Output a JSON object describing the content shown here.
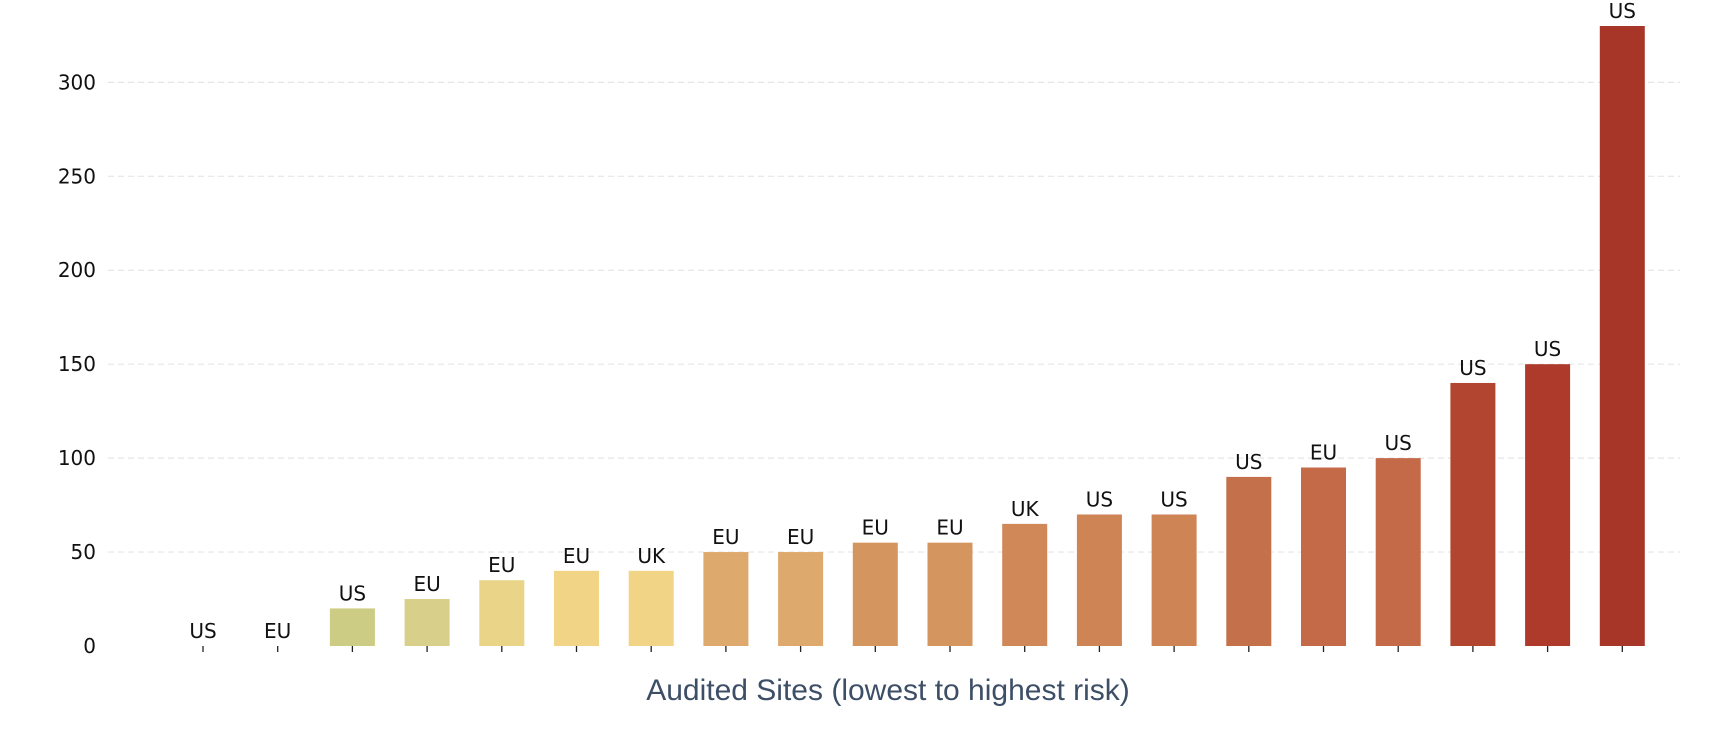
{
  "chart_data": {
    "type": "bar",
    "title": "",
    "xlabel": "Audited Sites (lowest to highest risk)",
    "ylabel": "",
    "ylim": [
      0,
      330
    ],
    "yticks": [
      0,
      50,
      100,
      150,
      200,
      250,
      300
    ],
    "grid": true,
    "legend": "none",
    "bar_labels": [
      "US",
      "EU",
      "US",
      "EU",
      "EU",
      "EU",
      "UK",
      "EU",
      "EU",
      "EU",
      "EU",
      "UK",
      "US",
      "US",
      "US",
      "EU",
      "US",
      "US",
      "US",
      "US"
    ],
    "values": [
      0,
      0,
      20,
      25,
      35,
      40,
      40,
      50,
      50,
      55,
      55,
      65,
      70,
      70,
      90,
      95,
      100,
      140,
      150,
      330
    ],
    "colors": [
      "#cdcc85",
      "#cdcc85",
      "#cdcc85",
      "#d8d08a",
      "#ead487",
      "#f2d486",
      "#f2d486",
      "#dea96c",
      "#dea96c",
      "#d5955f",
      "#d5955f",
      "#d18859",
      "#cf8456",
      "#cf8456",
      "#c4704a",
      "#c46a48",
      "#c46a48",
      "#b14530",
      "#ad3a2a",
      "#a73628"
    ]
  }
}
